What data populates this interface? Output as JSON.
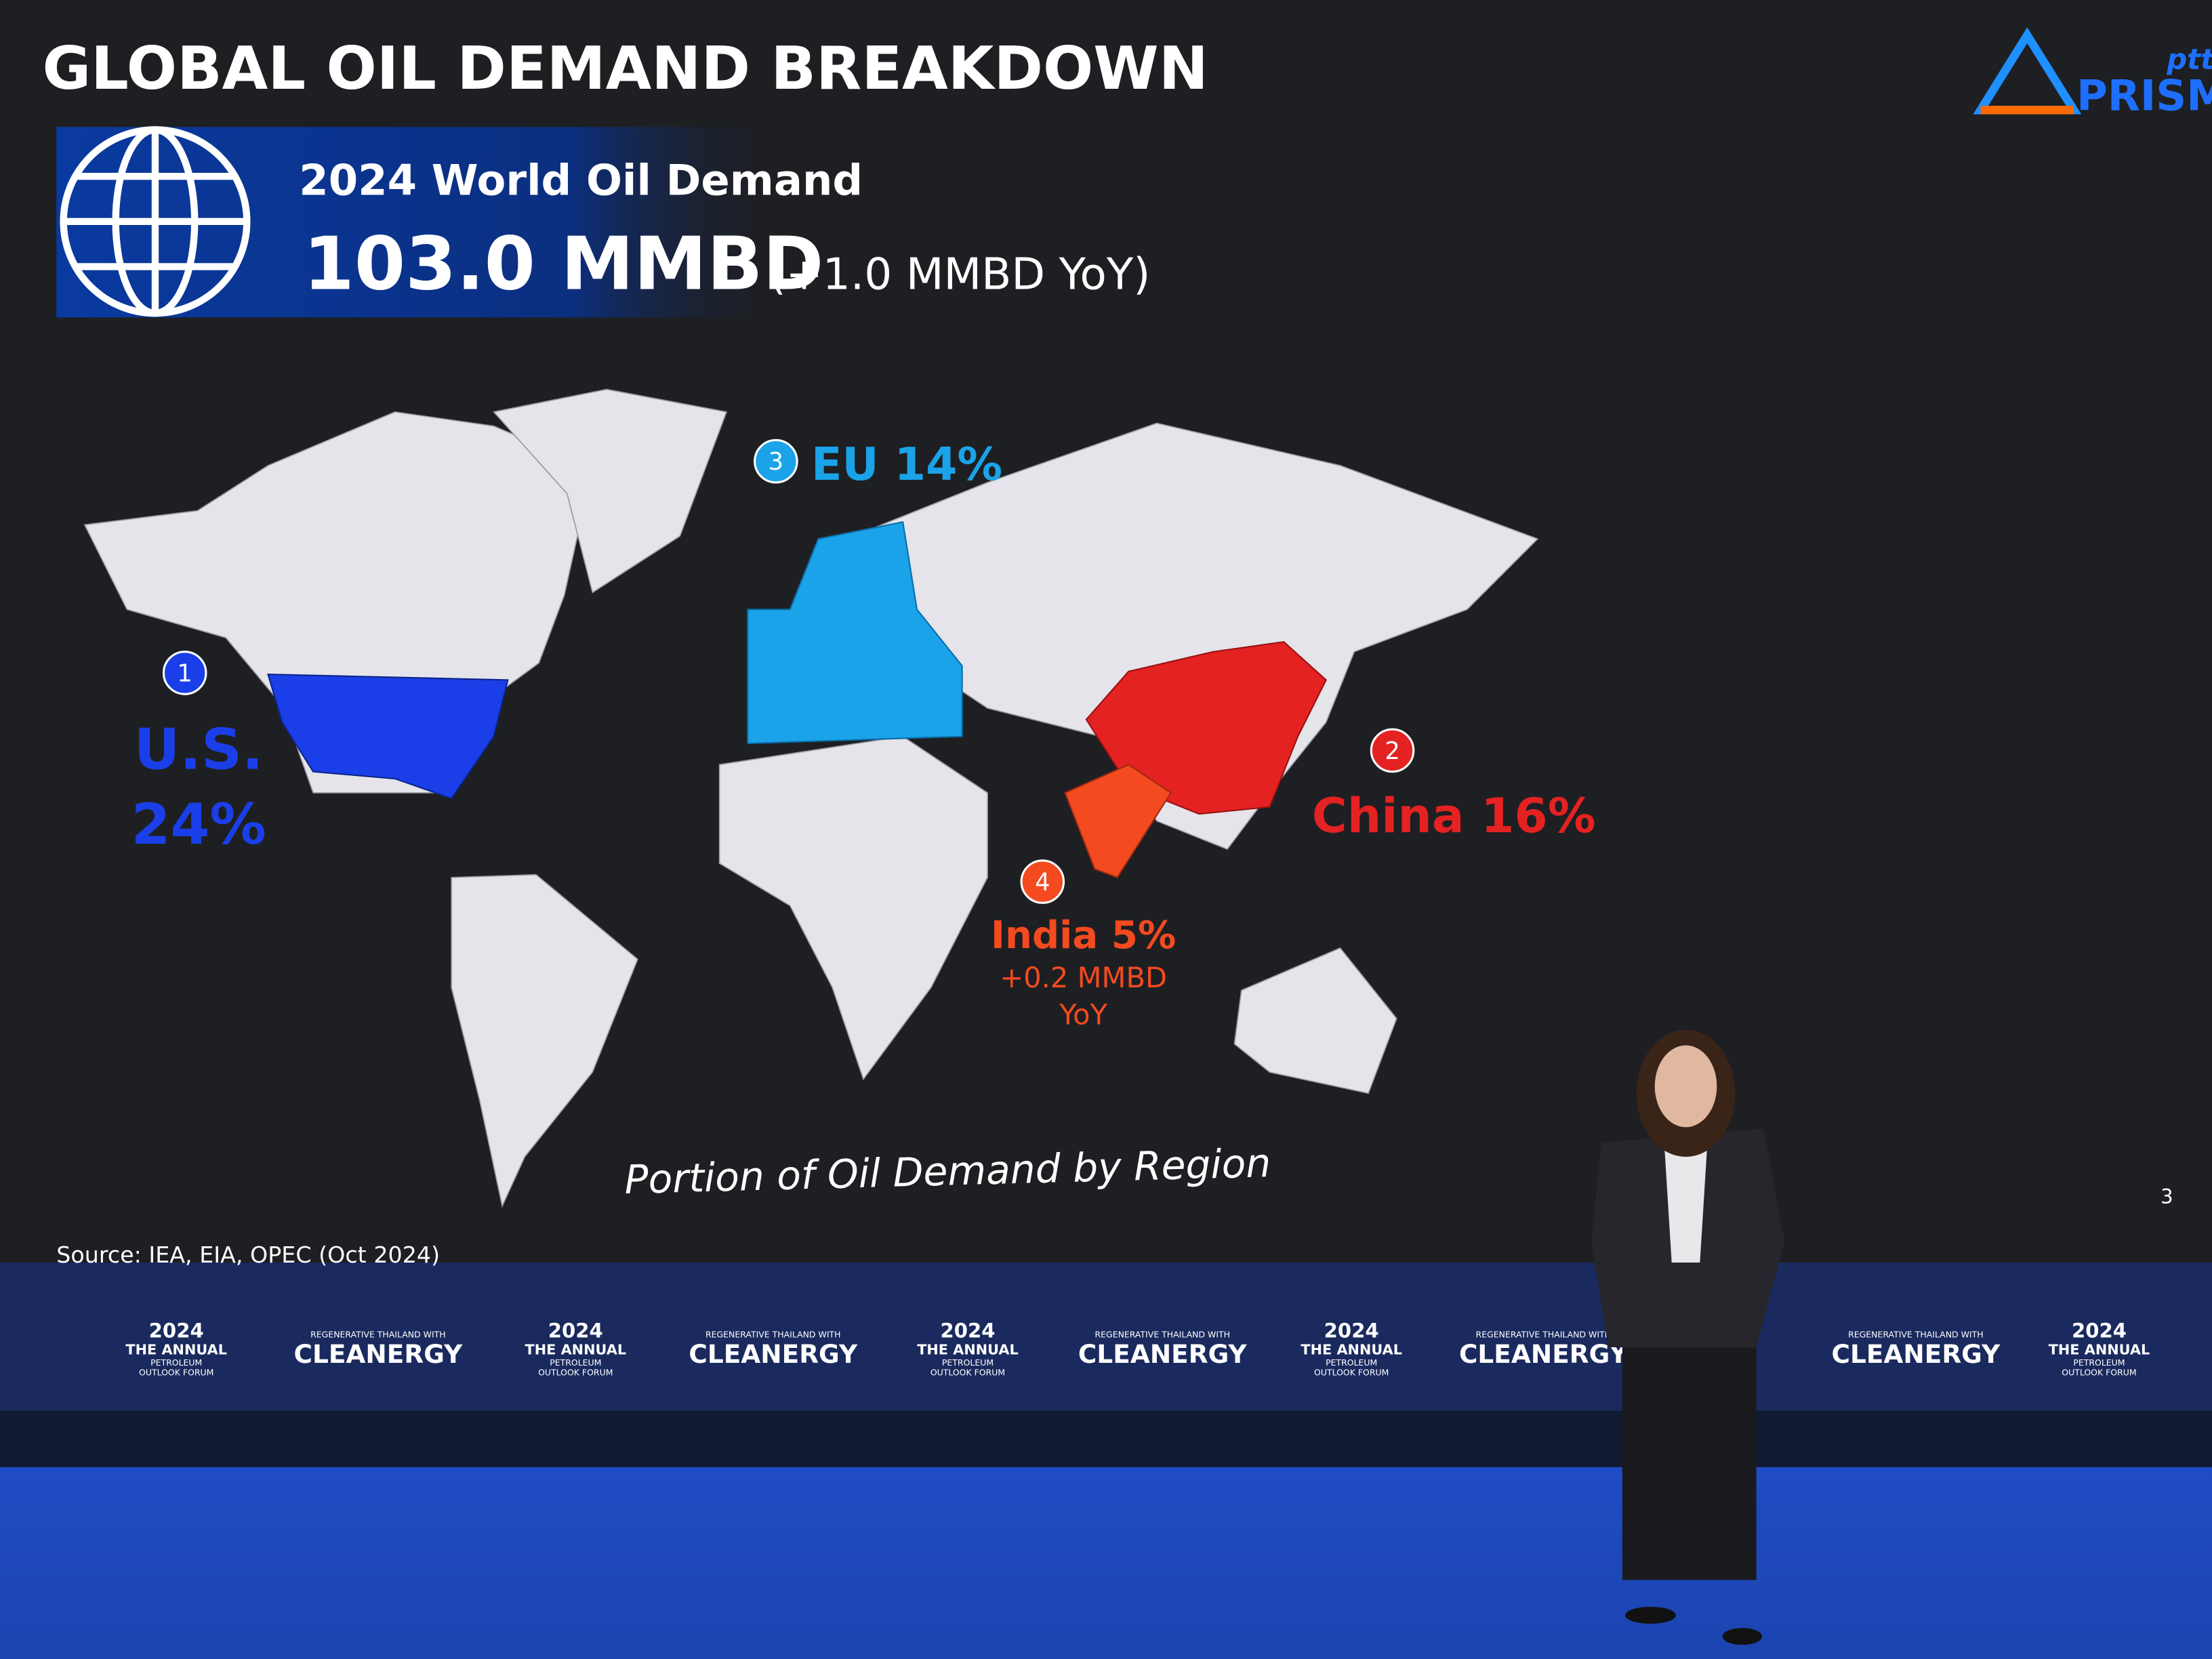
{
  "slide": {
    "title": "GLOBAL OIL DEMAND BREAKDOWN",
    "logo": {
      "brand": "ptt",
      "name": "PRISM"
    },
    "headline": {
      "label": "2024 World Oil Demand",
      "value": "103.0 MMBD",
      "change": "(+1.0 MMBD YoY)"
    },
    "regions": [
      {
        "rank": "1",
        "lines": [
          "U.S.",
          "24%"
        ]
      },
      {
        "rank": "2",
        "lines": [
          "China 16%"
        ]
      },
      {
        "rank": "3",
        "lines": [
          "EU 14%"
        ]
      },
      {
        "rank": "4",
        "lines": [
          "India 5%",
          "+0.2 MMBD",
          "YoY"
        ]
      }
    ],
    "caption": "Portion of Oil Demand by Region",
    "source": "Source: IEA, EIA, OPEC (Oct 2024)",
    "page_number": 3
  },
  "banner": {
    "forum": {
      "year": "2024",
      "line1": "THE ANNUAL",
      "line2": "PETROLEUM",
      "line3": "OUTLOOK FORUM"
    },
    "theme": {
      "tagline": "REGENERATIVE THAILAND WITH",
      "name": "CLEANERGY"
    }
  }
}
